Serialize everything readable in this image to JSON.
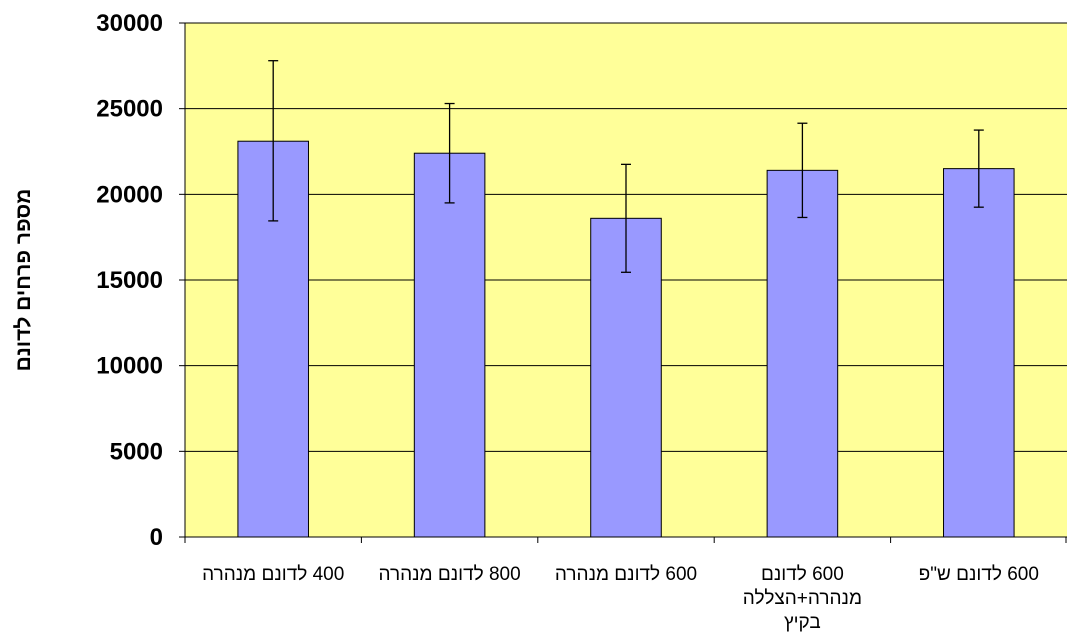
{
  "chart_data": {
    "type": "bar",
    "title": "",
    "xlabel": "",
    "ylabel": "מספר פרחים לדונם",
    "ylim": [
      0,
      30000
    ],
    "yticks": [
      "0",
      "5000",
      "10000",
      "15000",
      "20000",
      "25000",
      "30000"
    ],
    "grid": true,
    "categories": [
      [
        "400 לדונם מנהרה"
      ],
      [
        "800 לדונם מנהרה"
      ],
      [
        "600 לדונם מנהרה"
      ],
      [
        "600 לדונם",
        "מנהרה+הצללה",
        "בקיץ"
      ],
      [
        "600 לדונם ש\"פ"
      ]
    ],
    "values": [
      23100,
      22400,
      18600,
      21400,
      21500
    ],
    "error_low": [
      18450,
      19500,
      15450,
      18650,
      19250
    ],
    "error_high": [
      27800,
      25300,
      21750,
      24150,
      23750
    ],
    "colors": {
      "plot_background": "#ffff99",
      "bar_fill": "#9999ff",
      "bar_stroke": "#000000",
      "gridline": "#000000"
    }
  }
}
